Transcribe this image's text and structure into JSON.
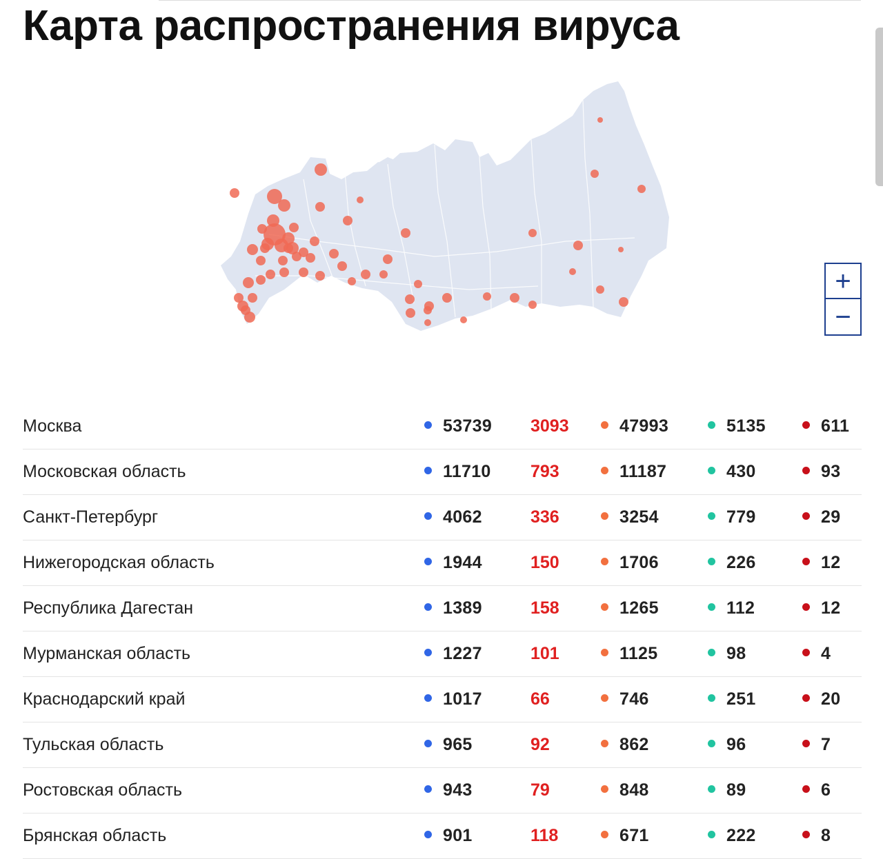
{
  "page": {
    "title": "Карта распространения вируса"
  },
  "colors": {
    "total": "#3066e6",
    "new": "#e02020",
    "active": "#f2703f",
    "recovered": "#21c4a0",
    "deaths": "#c8101a",
    "map_land": "#dfe5f1",
    "map_dot": "#f06a55",
    "zoom": "#1d3f8f"
  },
  "map": {
    "zoom_in_icon": "plus-icon",
    "zoom_out_icon": "minus-icon"
  },
  "zoom": {
    "plus_label": "+",
    "minus_label": "−"
  },
  "regions": [
    {
      "name": "Москва",
      "total": "53739",
      "new": "3093",
      "active": "47993",
      "recovered": "5135",
      "deaths": "611"
    },
    {
      "name": "Московская область",
      "total": "11710",
      "new": "793",
      "active": "11187",
      "recovered": "430",
      "deaths": "93"
    },
    {
      "name": "Санкт-Петербург",
      "total": "4062",
      "new": "336",
      "active": "3254",
      "recovered": "779",
      "deaths": "29"
    },
    {
      "name": "Нижегородская область",
      "total": "1944",
      "new": "150",
      "active": "1706",
      "recovered": "226",
      "deaths": "12"
    },
    {
      "name": "Республика Дагестан",
      "total": "1389",
      "new": "158",
      "active": "1265",
      "recovered": "112",
      "deaths": "12"
    },
    {
      "name": "Мурманская область",
      "total": "1227",
      "new": "101",
      "active": "1125",
      "recovered": "98",
      "deaths": "4"
    },
    {
      "name": "Краснодарский край",
      "total": "1017",
      "new": "66",
      "active": "746",
      "recovered": "251",
      "deaths": "20"
    },
    {
      "name": "Тульская область",
      "total": "965",
      "new": "92",
      "active": "862",
      "recovered": "96",
      "deaths": "7"
    },
    {
      "name": "Ростовская область",
      "total": "943",
      "new": "79",
      "active": "848",
      "recovered": "89",
      "deaths": "6"
    },
    {
      "name": "Брянская область",
      "total": "901",
      "new": "118",
      "active": "671",
      "recovered": "222",
      "deaths": "8"
    }
  ]
}
